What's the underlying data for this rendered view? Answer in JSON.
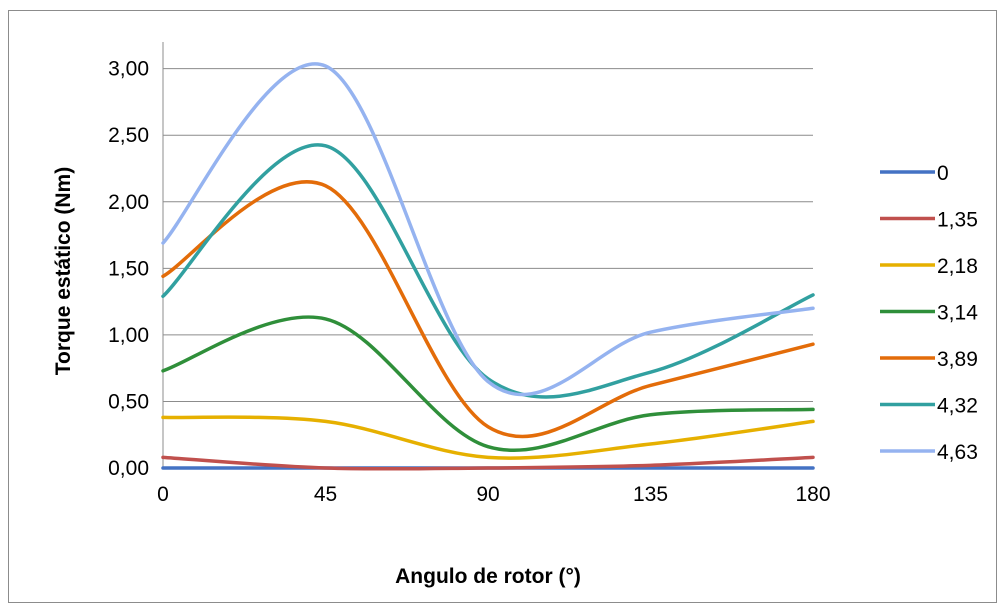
{
  "chart_data": {
    "type": "line",
    "title": "",
    "xlabel": "Angulo de rotor (°)",
    "ylabel": "Torque estático (Nm)",
    "xlim": [
      0,
      180
    ],
    "ylim": [
      0,
      3.2
    ],
    "x_ticks": [
      0,
      45,
      90,
      135,
      180
    ],
    "x_tick_labels": [
      "0",
      "45",
      "90",
      "135",
      "180"
    ],
    "y_ticks": [
      0,
      0.5,
      1,
      1.5,
      2,
      2.5,
      3
    ],
    "y_tick_labels": [
      "0,00",
      "0,50",
      "1,00",
      "1,50",
      "2,00",
      "2,50",
      "3,00"
    ],
    "grid": "horizontal",
    "legend_position": "right",
    "x": [
      0,
      45,
      90,
      135,
      180
    ],
    "series": [
      {
        "name": "0",
        "color": "#4472c4",
        "values": [
          0.0,
          0.0,
          0.0,
          0.0,
          0.0
        ]
      },
      {
        "name": "1,35",
        "color": "#c0504d",
        "values": [
          0.08,
          0.0,
          0.0,
          0.02,
          0.08
        ]
      },
      {
        "name": "2,18",
        "color": "#e6b000",
        "values": [
          0.38,
          0.35,
          0.08,
          0.18,
          0.35
        ]
      },
      {
        "name": "3,14",
        "color": "#2f8f3a",
        "values": [
          0.73,
          1.12,
          0.16,
          0.4,
          0.44
        ]
      },
      {
        "name": "3,89",
        "color": "#e36c09",
        "values": [
          1.44,
          2.12,
          0.31,
          0.62,
          0.93
        ]
      },
      {
        "name": "4,32",
        "color": "#31a0a0",
        "values": [
          1.29,
          2.42,
          0.67,
          0.72,
          1.3
        ]
      },
      {
        "name": "4,63",
        "color": "#95b3f0",
        "values": [
          1.69,
          3.02,
          0.65,
          1.02,
          1.2
        ]
      }
    ]
  }
}
